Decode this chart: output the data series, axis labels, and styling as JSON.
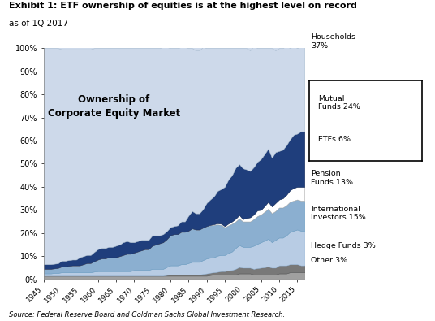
{
  "title_line1": "Exhibit 1: ETF ownership of equities is at the highest level on record",
  "title_line2": "as of 1Q 2017",
  "chart_label": "Ownership of\nCorporate Equity Market",
  "source": "Source: Federal Reserve Board and Goldman Sachs Global Investment Research.",
  "years": [
    1945,
    1946,
    1947,
    1948,
    1949,
    1950,
    1951,
    1952,
    1953,
    1954,
    1955,
    1956,
    1957,
    1958,
    1959,
    1960,
    1961,
    1962,
    1963,
    1964,
    1965,
    1966,
    1967,
    1968,
    1969,
    1970,
    1971,
    1972,
    1973,
    1974,
    1975,
    1976,
    1977,
    1978,
    1979,
    1980,
    1981,
    1982,
    1983,
    1984,
    1985,
    1986,
    1987,
    1988,
    1989,
    1990,
    1991,
    1992,
    1993,
    1994,
    1995,
    1996,
    1997,
    1998,
    1999,
    2000,
    2001,
    2002,
    2003,
    2004,
    2005,
    2006,
    2007,
    2008,
    2009,
    2010,
    2011,
    2012,
    2013,
    2014,
    2015,
    2016,
    2017
  ],
  "other": [
    1.5,
    1.5,
    1.5,
    1.5,
    1.5,
    1.5,
    1.5,
    1.5,
    1.5,
    1.5,
    1.5,
    1.5,
    1.5,
    1.5,
    1.5,
    1.5,
    1.5,
    1.5,
    1.5,
    1.5,
    1.5,
    1.5,
    1.5,
    1.5,
    1.5,
    1.5,
    1.5,
    1.5,
    1.5,
    1.5,
    1.5,
    1.5,
    1.5,
    1.5,
    1.5,
    1.5,
    1.5,
    1.5,
    1.5,
    1.5,
    1.5,
    1.5,
    1.5,
    1.5,
    1.5,
    1.5,
    1.8,
    2.0,
    2.0,
    2.0,
    2.0,
    2.0,
    2.0,
    2.0,
    2.5,
    2.5,
    2.5,
    2.5,
    2.0,
    2.0,
    2.0,
    2.0,
    2.0,
    2.0,
    2.0,
    2.5,
    2.5,
    2.5,
    3.0,
    3.0,
    3.0,
    3.0,
    3.0
  ],
  "hedge_funds": [
    0.0,
    0.0,
    0.0,
    0.0,
    0.0,
    0.0,
    0.0,
    0.0,
    0.0,
    0.0,
    0.0,
    0.0,
    0.0,
    0.0,
    0.0,
    0.0,
    0.0,
    0.0,
    0.0,
    0.0,
    0.0,
    0.0,
    0.0,
    0.0,
    0.0,
    0.0,
    0.0,
    0.0,
    0.0,
    0.0,
    0.0,
    0.0,
    0.0,
    0.0,
    0.3,
    0.5,
    0.5,
    0.5,
    0.5,
    0.5,
    0.5,
    0.5,
    0.5,
    0.5,
    0.8,
    1.0,
    1.0,
    1.0,
    1.2,
    1.5,
    1.5,
    1.8,
    2.0,
    2.5,
    2.8,
    2.5,
    2.5,
    2.5,
    2.5,
    2.8,
    3.0,
    3.2,
    3.5,
    3.0,
    3.0,
    3.5,
    3.5,
    3.5,
    3.5,
    3.5,
    3.5,
    3.0,
    3.0
  ],
  "intl": [
    1.0,
    1.0,
    1.0,
    1.2,
    1.2,
    1.5,
    1.5,
    1.5,
    1.5,
    1.5,
    1.5,
    1.5,
    1.5,
    1.5,
    1.8,
    2.0,
    2.0,
    2.0,
    2.0,
    2.0,
    2.0,
    2.0,
    2.0,
    2.0,
    2.0,
    2.5,
    2.5,
    2.5,
    2.5,
    2.5,
    3.0,
    3.0,
    3.0,
    3.0,
    3.5,
    4.0,
    4.0,
    4.0,
    4.5,
    4.5,
    5.0,
    5.5,
    5.5,
    5.5,
    6.0,
    6.5,
    6.5,
    6.5,
    7.0,
    7.0,
    7.0,
    7.5,
    8.0,
    9.0,
    9.5,
    9.0,
    9.0,
    9.0,
    10.0,
    10.5,
    11.0,
    11.5,
    12.0,
    11.0,
    12.0,
    12.0,
    12.0,
    13.0,
    14.0,
    14.5,
    15.0,
    15.0,
    15.0
  ],
  "pension": [
    2.0,
    2.0,
    2.0,
    2.0,
    2.2,
    2.5,
    2.5,
    2.8,
    3.0,
    3.0,
    3.0,
    3.5,
    4.0,
    4.0,
    4.5,
    5.0,
    5.5,
    5.5,
    6.0,
    6.0,
    6.0,
    6.5,
    7.0,
    7.5,
    7.5,
    7.5,
    8.0,
    8.5,
    9.0,
    9.0,
    10.0,
    10.5,
    11.0,
    11.5,
    12.0,
    13.0,
    13.5,
    13.5,
    14.0,
    14.0,
    14.0,
    14.5,
    14.0,
    14.0,
    14.0,
    14.0,
    14.0,
    14.0,
    13.5,
    13.0,
    12.0,
    12.0,
    12.0,
    11.5,
    11.5,
    11.0,
    11.0,
    11.0,
    11.5,
    12.0,
    12.0,
    12.5,
    13.0,
    12.5,
    12.5,
    13.0,
    13.0,
    13.0,
    13.0,
    13.0,
    13.0,
    13.0,
    13.0
  ],
  "etfs": [
    0.0,
    0.0,
    0.0,
    0.0,
    0.0,
    0.0,
    0.0,
    0.0,
    0.0,
    0.0,
    0.0,
    0.0,
    0.0,
    0.0,
    0.0,
    0.0,
    0.0,
    0.0,
    0.0,
    0.0,
    0.0,
    0.0,
    0.0,
    0.0,
    0.0,
    0.0,
    0.0,
    0.0,
    0.0,
    0.0,
    0.0,
    0.0,
    0.0,
    0.0,
    0.0,
    0.0,
    0.0,
    0.0,
    0.0,
    0.0,
    0.0,
    0.0,
    0.0,
    0.0,
    0.0,
    0.0,
    0.2,
    0.3,
    0.5,
    0.5,
    0.5,
    0.8,
    1.0,
    1.2,
    1.5,
    1.0,
    1.5,
    1.8,
    2.0,
    2.5,
    2.0,
    2.5,
    3.0,
    3.0,
    3.5,
    3.5,
    4.0,
    4.5,
    5.0,
    5.5,
    5.5,
    6.0,
    6.0
  ],
  "mutual_funds": [
    2.0,
    2.0,
    2.0,
    2.0,
    2.0,
    2.5,
    2.5,
    2.5,
    2.5,
    2.5,
    3.5,
    3.5,
    3.5,
    3.5,
    4.0,
    4.5,
    4.5,
    4.5,
    4.5,
    4.5,
    5.0,
    5.0,
    5.5,
    5.5,
    5.0,
    4.5,
    4.5,
    4.5,
    4.0,
    4.0,
    4.5,
    4.0,
    3.5,
    3.5,
    3.5,
    3.5,
    3.5,
    3.8,
    4.5,
    4.5,
    6.5,
    7.5,
    7.0,
    7.0,
    8.0,
    10.0,
    11.0,
    12.0,
    14.0,
    15.0,
    17.0,
    19.0,
    20.0,
    22.0,
    22.0,
    22.0,
    21.0,
    20.0,
    20.5,
    21.0,
    22.0,
    22.5,
    23.0,
    21.0,
    22.0,
    21.0,
    21.0,
    21.5,
    22.0,
    23.0,
    23.0,
    24.0,
    24.0
  ],
  "households": [
    93.5,
    93.5,
    93.5,
    93.3,
    93.1,
    91.5,
    91.5,
    91.2,
    91.0,
    91.0,
    90.0,
    89.5,
    89.0,
    89.0,
    88.2,
    87.0,
    86.5,
    86.5,
    86.0,
    86.0,
    85.5,
    85.0,
    84.0,
    83.5,
    84.0,
    84.0,
    83.5,
    83.0,
    83.0,
    83.0,
    81.0,
    81.0,
    81.0,
    81.0,
    79.7,
    77.5,
    77.0,
    76.7,
    75.5,
    75.5,
    72.5,
    70.5,
    70.5,
    70.5,
    70.2,
    67.0,
    65.5,
    64.2,
    61.8,
    61.0,
    60.0,
    56.9,
    55.0,
    51.8,
    50.2,
    52.0,
    52.5,
    52.2,
    52.5,
    49.2,
    48.0,
    45.8,
    43.5,
    47.5,
    44.0,
    44.5,
    44.0,
    43.0,
    39.5,
    38.5,
    37.0,
    37.0,
    37.0
  ],
  "colors": {
    "other": "#a0a0a0",
    "hedge_funds": "#787878",
    "intl": "#b8cce4",
    "pension": "#8bafd0",
    "etfs": "#ffffff",
    "mutual_funds": "#1f3e7c",
    "households": "#cdd9ea"
  },
  "xlim": [
    1945,
    2017
  ],
  "ylim": [
    0,
    100
  ],
  "yticks": [
    0,
    10,
    20,
    30,
    40,
    50,
    60,
    70,
    80,
    90,
    100
  ],
  "xticks": [
    1945,
    1950,
    1955,
    1960,
    1965,
    1970,
    1975,
    1980,
    1985,
    1990,
    1995,
    2000,
    2005,
    2010,
    2015
  ],
  "fig_bg": "#ffffff",
  "plot_bg": "#cdd9ea"
}
